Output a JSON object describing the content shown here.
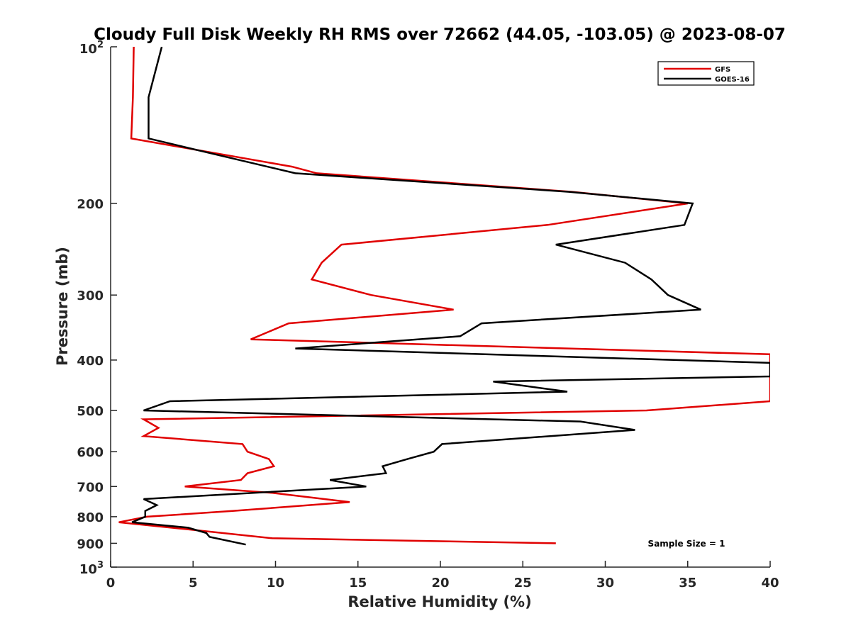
{
  "chart_data": {
    "type": "line",
    "title": "Cloudy Full Disk Weekly RH RMS over 72662 (44.05, -103.05) @ 2023-08-07",
    "xlabel": "Relative Humidity (%)",
    "ylabel": "Pressure (mb)",
    "xlim": [
      0,
      40
    ],
    "ylim": [
      100,
      1000
    ],
    "y_scale": "log",
    "y_reversed": true,
    "x_ticks": [
      "0",
      "5",
      "10",
      "15",
      "20",
      "25",
      "30",
      "35",
      "40"
    ],
    "y_ticks": [
      {
        "value": 100,
        "base": "10",
        "exp": "2"
      },
      {
        "value": 200,
        "label": "200"
      },
      {
        "value": 300,
        "label": "300"
      },
      {
        "value": 400,
        "label": "400"
      },
      {
        "value": 500,
        "label": "500"
      },
      {
        "value": 600,
        "label": "600"
      },
      {
        "value": 700,
        "label": "700"
      },
      {
        "value": 800,
        "label": "800"
      },
      {
        "value": 900,
        "label": "900"
      },
      {
        "value": 1000,
        "base": "10",
        "exp": "3"
      }
    ],
    "legend_position": "top-right",
    "annotation": "Sample Size = 1",
    "series": [
      {
        "name": "GFS",
        "color": "#e00000",
        "points": [
          [
            1.4,
            100
          ],
          [
            1.35,
            125
          ],
          [
            1.25,
            150
          ],
          [
            11.0,
            170
          ],
          [
            12.5,
            175
          ],
          [
            28.0,
            190
          ],
          [
            35.0,
            200
          ],
          [
            26.5,
            220
          ],
          [
            14.0,
            240
          ],
          [
            12.8,
            260
          ],
          [
            12.2,
            280
          ],
          [
            15.8,
            300
          ],
          [
            20.8,
            320
          ],
          [
            10.8,
            340
          ],
          [
            8.5,
            365
          ],
          [
            40.0,
            390
          ],
          [
            40.0,
            480
          ],
          [
            32.5,
            500
          ],
          [
            2.0,
            520
          ],
          [
            2.9,
            540
          ],
          [
            2.0,
            560
          ],
          [
            8.0,
            580
          ],
          [
            8.3,
            600
          ],
          [
            9.6,
            620
          ],
          [
            9.9,
            640
          ],
          [
            8.3,
            660
          ],
          [
            7.9,
            680
          ],
          [
            4.5,
            700
          ],
          [
            9.8,
            720
          ],
          [
            14.5,
            750
          ],
          [
            7.4,
            780
          ],
          [
            2.2,
            800
          ],
          [
            0.5,
            820
          ],
          [
            4.5,
            845
          ],
          [
            9.8,
            880
          ],
          [
            27.0,
            900
          ]
        ]
      },
      {
        "name": "GOES-16",
        "color": "#000000",
        "points": [
          [
            3.1,
            100
          ],
          [
            2.3,
            125
          ],
          [
            2.3,
            150
          ],
          [
            6.0,
            160
          ],
          [
            11.2,
            175
          ],
          [
            27.8,
            190
          ],
          [
            35.3,
            200
          ],
          [
            34.8,
            220
          ],
          [
            27.0,
            240
          ],
          [
            31.2,
            260
          ],
          [
            32.8,
            280
          ],
          [
            33.8,
            300
          ],
          [
            35.8,
            320
          ],
          [
            22.5,
            340
          ],
          [
            21.2,
            360
          ],
          [
            11.2,
            380
          ],
          [
            40.0,
            405
          ],
          [
            40.0,
            430
          ],
          [
            23.2,
            440
          ],
          [
            27.7,
            460
          ],
          [
            3.6,
            480
          ],
          [
            2.0,
            500
          ],
          [
            28.5,
            525
          ],
          [
            31.8,
            545
          ],
          [
            20.1,
            580
          ],
          [
            19.6,
            600
          ],
          [
            18.0,
            620
          ],
          [
            16.5,
            640
          ],
          [
            16.7,
            660
          ],
          [
            13.3,
            680
          ],
          [
            15.5,
            700
          ],
          [
            2.0,
            740
          ],
          [
            2.8,
            760
          ],
          [
            2.1,
            780
          ],
          [
            2.1,
            800
          ],
          [
            1.3,
            820
          ],
          [
            4.7,
            840
          ],
          [
            5.8,
            860
          ],
          [
            6.0,
            875
          ],
          [
            8.2,
            905
          ]
        ]
      }
    ]
  }
}
